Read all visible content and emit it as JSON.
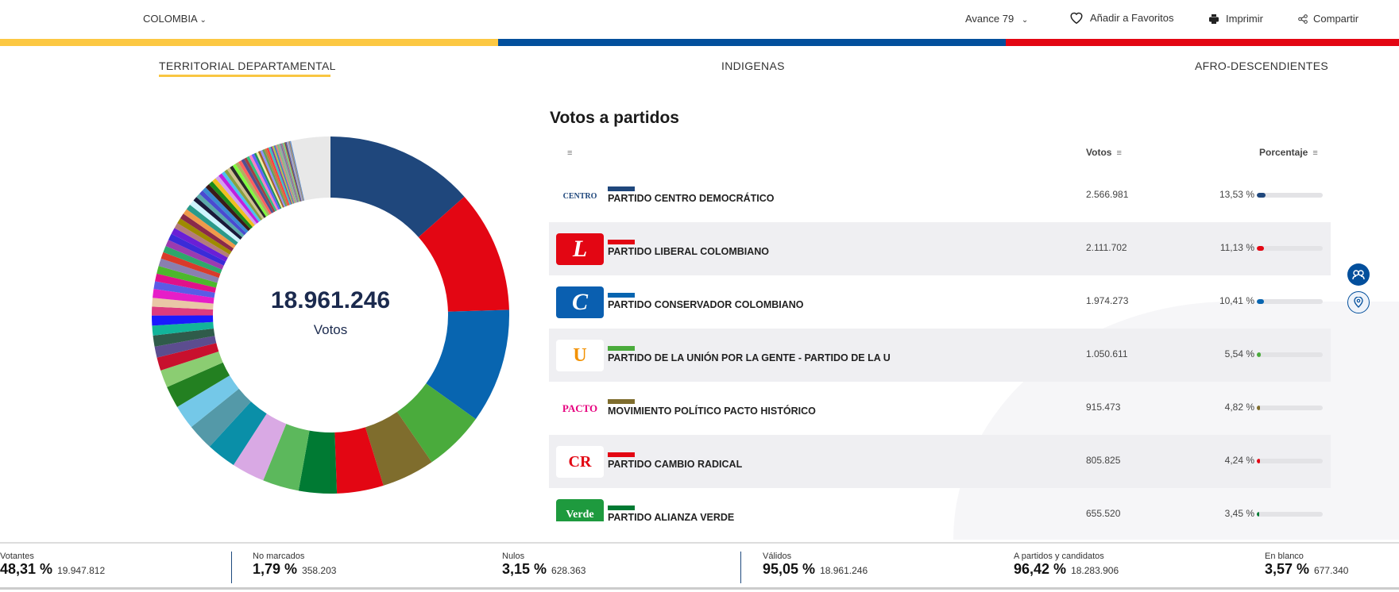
{
  "header": {
    "country": "COLOMBIA",
    "avance": "Avance 79",
    "favorites": "Añadir a Favoritos",
    "print": "Imprimir",
    "share": "Compartir"
  },
  "colors": {
    "yellow": "#fcc843",
    "blue": "#024f9c",
    "red": "#e30613"
  },
  "tabs": [
    {
      "label": "TERRITORIAL DEPARTAMENTAL",
      "active": true
    },
    {
      "label": "INDIGENAS"
    },
    {
      "label": "AFRO-DESCENDIENTES"
    }
  ],
  "donut": {
    "total": "18.961.246",
    "label": "Votos"
  },
  "table": {
    "title": "Votos a partidos",
    "col_votes": "Votos",
    "col_pct": "Porcentaje",
    "rows": [
      {
        "logo": "CENTRO",
        "name": "PARTIDO CENTRO DEMOCRÁTICO",
        "votes": "2.566.981",
        "pct": "13,53 %",
        "pct_value": 13.53,
        "color": "#1f477c",
        "logo_bg": "#ffffff",
        "logo_fg": "#1f477c"
      },
      {
        "logo": "L",
        "name": "PARTIDO LIBERAL COLOMBIANO",
        "votes": "2.111.702",
        "pct": "11,13 %",
        "pct_value": 11.13,
        "color": "#e30613",
        "logo_bg": "#e30613",
        "logo_fg": "#ffffff"
      },
      {
        "logo": "C",
        "name": "PARTIDO CONSERVADOR COLOMBIANO",
        "votes": "1.974.273",
        "pct": "10,41 %",
        "pct_value": 10.41,
        "color": "#0865b0",
        "logo_bg": "#0a5fb0",
        "logo_fg": "#ffffff"
      },
      {
        "logo": "U",
        "name": "PARTIDO DE LA UNIÓN POR LA GENTE - PARTIDO DE LA U",
        "votes": "1.050.611",
        "pct": "5,54 %",
        "pct_value": 5.54,
        "color": "#4aab3c",
        "logo_bg": "#ffffff",
        "logo_fg": "#f29100"
      },
      {
        "logo": "PACTO",
        "name": "MOVIMIENTO POLÍTICO PACTO HISTÓRICO",
        "votes": "915.473",
        "pct": "4,82 %",
        "pct_value": 4.82,
        "color": "#7f6d2d",
        "logo_bg": "#ffffff",
        "logo_fg": "#e6007e"
      },
      {
        "logo": "CR",
        "name": "PARTIDO CAMBIO RADICAL",
        "votes": "805.825",
        "pct": "4,24 %",
        "pct_value": 4.24,
        "color": "#e30613",
        "logo_bg": "#ffffff",
        "logo_fg": "#e30613"
      },
      {
        "logo": "Verde",
        "name": "PARTIDO ALIANZA VERDE",
        "votes": "655.520",
        "pct": "3,45 %",
        "pct_value": 3.45,
        "color": "#007a33",
        "logo_bg": "#1e9a3e",
        "logo_fg": "#ffffff"
      }
    ]
  },
  "chart_data": {
    "type": "pie",
    "title": "18.961.246 Votos",
    "values": [
      13.53,
      11.13,
      10.41,
      5.54,
      4.82,
      4.24,
      3.45,
      3.3,
      3.0,
      2.7,
      2.4,
      2.2,
      2.0,
      1.6,
      1.2,
      1.0,
      1.0,
      0.9,
      0.9,
      0.8,
      0.8,
      0.8,
      0.7,
      0.7,
      0.7,
      0.7,
      0.6,
      0.6,
      0.6,
      0.6,
      0.6,
      0.5,
      0.5,
      0.5,
      0.5,
      0.5,
      0.5,
      0.4,
      0.4,
      0.4,
      0.4,
      0.4,
      0.4,
      0.4,
      0.35,
      0.35,
      0.3,
      0.3,
      0.3,
      0.3,
      0.3,
      0.3,
      0.3,
      0.3,
      0.25,
      0.25,
      0.25,
      0.25,
      0.2,
      0.2,
      0.2,
      0.2,
      0.2,
      0.2,
      0.2,
      0.2,
      0.15,
      0.15,
      0.15,
      0.15,
      0.15,
      0.15,
      0.1,
      0.1,
      0.1,
      0.1,
      0.1,
      0.1,
      0.1,
      0.1,
      0.1,
      0.1,
      3.57
    ],
    "colors": [
      "#1f477c",
      "#e30613",
      "#0865b0",
      "#4aab3c",
      "#7f6d2d",
      "#e30613",
      "#007a33",
      "#5cb85c",
      "#d9a9e4",
      "#0a8fa8",
      "#5499a8",
      "#74c8e8",
      "#238021",
      "#8bcd72",
      "#c8102e",
      "#5c4d8f",
      "#2f5b4a",
      "#12b49a",
      "#1a1aff",
      "#dd3a7f",
      "#e9c7a6",
      "#e61ec8",
      "#5b5be6",
      "#e0118a",
      "#4cb82c",
      "#8a7fb0",
      "#d93b2b",
      "#2ea86b",
      "#9b3bb0",
      "#3a2bd8",
      "#6a1fd6",
      "#b47c7c",
      "#9e8a00",
      "#8a2a4a",
      "#f09a4a",
      "#2a9a8a",
      "#cef5ff",
      "#1a1a3a",
      "#5aaaaa",
      "#4a4ad0",
      "#3a8ad0",
      "#3a1a1a",
      "#1a8a1a",
      "#f0c020",
      "#d0a0f0",
      "#c020e0",
      "#4ac0f0",
      "#8aa040",
      "#d0c090",
      "#2a2a2a",
      "#80ff40",
      "#b0b060",
      "#ff6060",
      "#505090",
      "#a04040",
      "#30c080",
      "#ff80c0",
      "#6060ff",
      "#209060",
      "#f0f0a0",
      "#a06030",
      "#9090ff",
      "#60a060",
      "#c08040",
      "#ff4040",
      "#40c0c0",
      "#8040a0",
      "#c0c040",
      "#4080c0",
      "#e08080",
      "#80c080",
      "#a0a0a0",
      "#6080a0",
      "#c06080",
      "#60c0a0",
      "#a0c060",
      "#804040",
      "#4060a0",
      "#c0a0c0",
      "#80a0c0",
      "#a08060",
      "#6090d0",
      "#e8e8e8"
    ]
  },
  "side": {
    "people_icon": "people-icon",
    "location_icon": "location-pin-icon"
  },
  "footer": [
    {
      "label": "Votantes",
      "pct": "48,31 %",
      "num": "19.947.812"
    },
    {
      "label": "No marcados",
      "pct": "1,79 %",
      "num": "358.203"
    },
    {
      "label": "Nulos",
      "pct": "3,15 %",
      "num": "628.363"
    },
    {
      "label": "Válidos",
      "pct": "95,05 %",
      "num": "18.961.246"
    },
    {
      "label": "A partidos y candidatos",
      "pct": "96,42 %",
      "num": "18.283.906"
    },
    {
      "label": "En blanco",
      "pct": "3,57 %",
      "num": "677.340"
    }
  ]
}
